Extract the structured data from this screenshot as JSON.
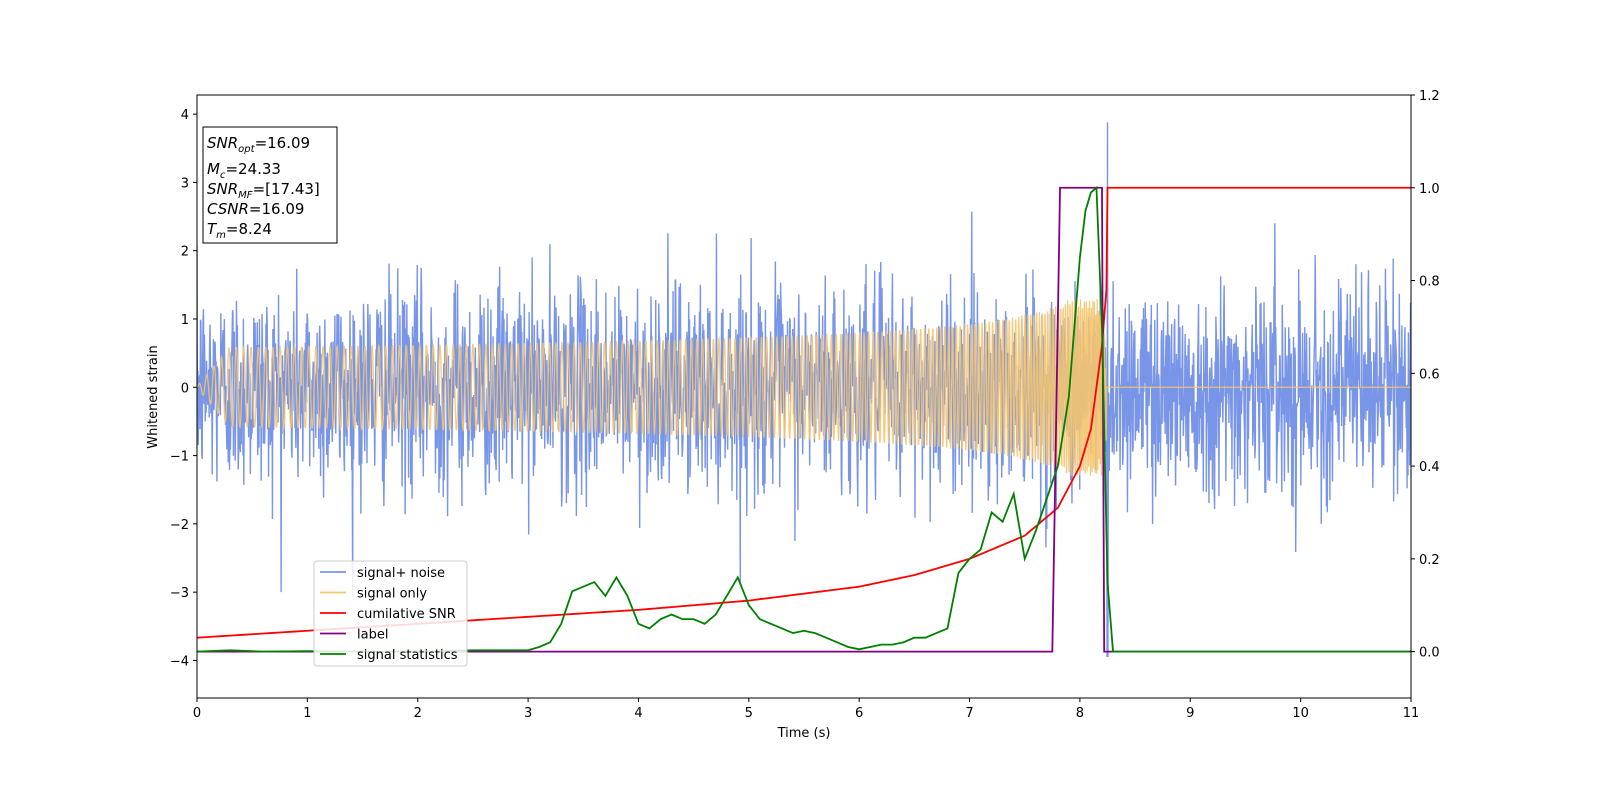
{
  "chart_data": {
    "type": "line",
    "xlabel": "Time (s)",
    "ylabel": "Whitened strain",
    "xlim": [
      0,
      11
    ],
    "ylim_left": [
      -4.55,
      4.28
    ],
    "ylim_right": [
      -0.1,
      1.2
    ],
    "x_ticks": [
      0,
      1,
      2,
      3,
      4,
      5,
      6,
      7,
      8,
      9,
      10,
      11
    ],
    "y_ticks_left": [
      -4,
      -3,
      -2,
      -1,
      0,
      1,
      2,
      3,
      4
    ],
    "y_ticks_right": [
      0.0,
      0.2,
      0.4,
      0.6,
      0.8,
      1.0,
      1.2
    ],
    "x_tick_labels": [
      "0",
      "1",
      "2",
      "3",
      "4",
      "5",
      "6",
      "7",
      "8",
      "9",
      "10",
      "11"
    ],
    "y_tick_labels_left": [
      "−4",
      "−3",
      "−2",
      "−1",
      "0",
      "1",
      "2",
      "3",
      "4"
    ],
    "y_tick_labels_right": [
      "0.0",
      "0.2",
      "0.4",
      "0.6",
      "0.8",
      "1.0",
      "1.2"
    ],
    "grid": false,
    "legend_position": "lower-left",
    "annotation": {
      "lines": [
        {
          "base": "SNR",
          "sub": "opt",
          "rest": "=16.09"
        },
        {
          "base": "M",
          "sub": "c",
          "rest": "=24.33"
        },
        {
          "base": "SNR",
          "sub": "MF",
          "rest": "=[17.43]"
        },
        {
          "base": "CSNR",
          "sub": "",
          "rest": "=16.09"
        },
        {
          "base": "T",
          "sub": "m",
          "rest": "=8.24"
        }
      ]
    },
    "series": [
      {
        "name": "signal+ noise",
        "color": "#7895e8",
        "axis": "left",
        "kind": "noise",
        "sigma": 0.75,
        "x_range": [
          0,
          11
        ],
        "spike_max": 3.88,
        "spike_min": -3.95,
        "spike_time": 8.25
      },
      {
        "name": "signal only",
        "color": "#f5c46e",
        "axis": "left",
        "kind": "chirp",
        "merger_time": 8.24,
        "peak_amplitude": 1.3,
        "x_range": [
          0,
          11
        ]
      },
      {
        "name": "cumilative SNR",
        "color": "#ff0000",
        "axis": "right",
        "x": [
          0,
          1,
          2,
          3,
          4,
          5,
          6,
          6.5,
          7,
          7.5,
          7.8,
          8.0,
          8.1,
          8.2,
          8.24,
          8.25,
          9,
          10,
          11
        ],
        "y": [
          0.03,
          0.045,
          0.06,
          0.075,
          0.09,
          0.11,
          0.14,
          0.165,
          0.2,
          0.25,
          0.31,
          0.4,
          0.48,
          0.66,
          0.78,
          1.0,
          1.0,
          1.0,
          1.0
        ]
      },
      {
        "name": "label",
        "color": "#800080",
        "axis": "right",
        "x": [
          0,
          7.75,
          7.82,
          8.2,
          8.22,
          11
        ],
        "y": [
          0,
          0,
          1.0,
          1.0,
          0,
          0
        ]
      },
      {
        "name": "signal statistics",
        "color": "#008000",
        "axis": "right",
        "x": [
          0,
          0.3,
          0.6,
          1.0,
          1.5,
          2.0,
          2.5,
          3.0,
          3.1,
          3.2,
          3.3,
          3.4,
          3.5,
          3.6,
          3.7,
          3.8,
          3.9,
          4.0,
          4.1,
          4.2,
          4.3,
          4.4,
          4.5,
          4.6,
          4.7,
          4.8,
          4.9,
          5.0,
          5.1,
          5.2,
          5.3,
          5.4,
          5.5,
          5.6,
          5.7,
          5.8,
          5.9,
          6.0,
          6.1,
          6.2,
          6.3,
          6.4,
          6.5,
          6.6,
          6.7,
          6.8,
          6.9,
          7.0,
          7.1,
          7.2,
          7.3,
          7.4,
          7.5,
          7.6,
          7.7,
          7.8,
          7.9,
          8.0,
          8.05,
          8.1,
          8.15,
          8.2,
          8.25,
          8.3,
          9,
          10,
          11
        ],
        "y": [
          0.0,
          0.003,
          0.0,
          0.001,
          0.0,
          0.0,
          0.003,
          0.003,
          0.01,
          0.02,
          0.06,
          0.13,
          0.14,
          0.15,
          0.12,
          0.16,
          0.12,
          0.06,
          0.05,
          0.07,
          0.08,
          0.07,
          0.07,
          0.06,
          0.08,
          0.12,
          0.16,
          0.1,
          0.07,
          0.06,
          0.05,
          0.04,
          0.045,
          0.04,
          0.03,
          0.02,
          0.01,
          0.005,
          0.01,
          0.015,
          0.015,
          0.02,
          0.03,
          0.03,
          0.04,
          0.05,
          0.17,
          0.2,
          0.22,
          0.3,
          0.28,
          0.34,
          0.2,
          0.26,
          0.33,
          0.4,
          0.55,
          0.85,
          0.95,
          0.99,
          1.0,
          0.7,
          0.15,
          0.0,
          0.0,
          0.0,
          0.0
        ]
      }
    ]
  }
}
